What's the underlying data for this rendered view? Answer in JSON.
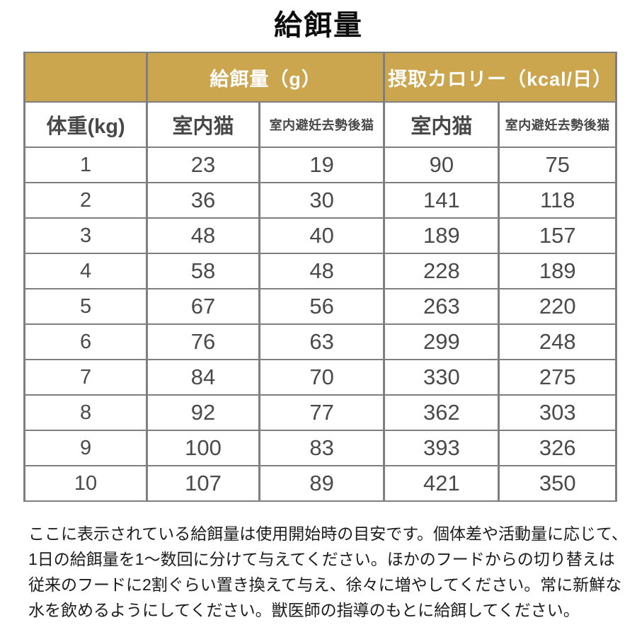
{
  "title": "給餌量",
  "colors": {
    "header_gold": "#CCA64E",
    "border_gray": "#7F7F7F",
    "cell_text": "#4A4A4A"
  },
  "table": {
    "group_header": {
      "spacer": "",
      "feeding": "給餌量（g）",
      "calories": "摂取カロリー（kcal/日）"
    },
    "column_headers": {
      "weight": "体重(kg)",
      "indoor_g": "室内猫",
      "neutered_g": "室内避妊去勢後猫",
      "indoor_kcal": "室内猫",
      "neutered_kcal": "室内避妊去勢後猫"
    },
    "rows": [
      [
        "1",
        "23",
        "19",
        "90",
        "75"
      ],
      [
        "2",
        "36",
        "30",
        "141",
        "118"
      ],
      [
        "3",
        "48",
        "40",
        "189",
        "157"
      ],
      [
        "4",
        "58",
        "48",
        "228",
        "189"
      ],
      [
        "5",
        "67",
        "56",
        "263",
        "220"
      ],
      [
        "6",
        "76",
        "63",
        "299",
        "248"
      ],
      [
        "7",
        "84",
        "70",
        "330",
        "275"
      ],
      [
        "8",
        "92",
        "77",
        "362",
        "303"
      ],
      [
        "9",
        "100",
        "83",
        "393",
        "326"
      ],
      [
        "10",
        "107",
        "89",
        "421",
        "350"
      ]
    ]
  },
  "footer_lines": [
    "ここに表示されている給餌量は使用開始時の目安です。個体差や活動量に応じて、",
    "1日の給餌量を1〜数回に分けて与えてください。ほかのフードからの切り替えは",
    "従来のフードに2割ぐらい置き換えて与え、徐々に増やしてください。常に新鮮な",
    "水を飲めるようにしてください。獣医師の指導のもとに給餌してください。"
  ],
  "chart_data": {
    "type": "table",
    "title": "給餌量",
    "group_columns": [
      "給餌量（g）",
      "摂取カロリー（kcal/日）"
    ],
    "columns": [
      "体重(kg)",
      "室内猫(g)",
      "室内避妊去勢後猫(g)",
      "室内猫(kcal/日)",
      "室内避妊去勢後猫(kcal/日)"
    ],
    "rows": [
      [
        1,
        23,
        19,
        90,
        75
      ],
      [
        2,
        36,
        30,
        141,
        118
      ],
      [
        3,
        48,
        40,
        189,
        157
      ],
      [
        4,
        58,
        48,
        228,
        189
      ],
      [
        5,
        67,
        56,
        263,
        220
      ],
      [
        6,
        76,
        63,
        299,
        248
      ],
      [
        7,
        84,
        70,
        330,
        275
      ],
      [
        8,
        92,
        77,
        362,
        303
      ],
      [
        9,
        100,
        83,
        393,
        326
      ],
      [
        10,
        107,
        89,
        421,
        350
      ]
    ]
  }
}
